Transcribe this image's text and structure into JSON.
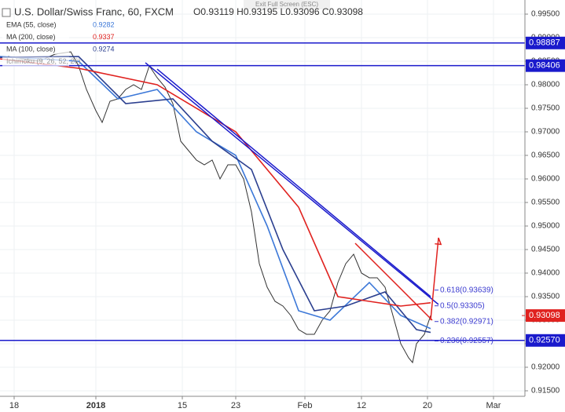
{
  "chart_data": {
    "type": "line",
    "title": "U.S. Dollar/Swiss Franc, 60, FXCM",
    "ohlc": "O0.93119 H0.93195 L0.93096 C0.93098",
    "exit_label": "Exit Full Screen (ESC)",
    "indicators": [
      {
        "label": "EMA (55, close)",
        "value_label": "0.9282",
        "color": "#3c78d8"
      },
      {
        "label": "MA (200, close)",
        "value_label": "0.9337",
        "color": "#e0221f"
      },
      {
        "label": "MA (100, close)",
        "value_label": "0.9274",
        "color": "#2b3f8f"
      },
      {
        "label": "Ichimoku (9, 26, 52, 26)"
      }
    ],
    "xlim": [
      0,
      167
    ],
    "xticks": [
      {
        "value": 4.5,
        "label": "18"
      },
      {
        "value": 30.5,
        "label": "2018"
      },
      {
        "value": 58,
        "label": "15"
      },
      {
        "value": 75,
        "label": "23"
      },
      {
        "value": 97,
        "label": "Feb"
      },
      {
        "value": 115,
        "label": "12"
      },
      {
        "value": 136,
        "label": "20"
      },
      {
        "value": 157,
        "label": "Mar"
      }
    ],
    "ylim": [
      0.91383,
      0.998
    ],
    "yticks": [
      {
        "value": 0.915,
        "label": "0.91500"
      },
      {
        "value": 0.92,
        "label": "0.92000"
      },
      {
        "value": 0.925,
        "label": "0.92500"
      },
      {
        "value": 0.93,
        "label": "0.93000"
      },
      {
        "value": 0.935,
        "label": "0.93500"
      },
      {
        "value": 0.94,
        "label": "0.94000"
      },
      {
        "value": 0.945,
        "label": "0.94500"
      },
      {
        "value": 0.95,
        "label": "0.95000"
      },
      {
        "value": 0.955,
        "label": "0.95500"
      },
      {
        "value": 0.96,
        "label": "0.96000"
      },
      {
        "value": 0.965,
        "label": "0.96500"
      },
      {
        "value": 0.97,
        "label": "0.97000"
      },
      {
        "value": 0.975,
        "label": "0.97500"
      },
      {
        "value": 0.98,
        "label": "0.98000"
      },
      {
        "value": 0.985,
        "label": "0.98500"
      },
      {
        "value": 0.99,
        "label": "0.99000"
      },
      {
        "value": 0.995,
        "label": "0.99500"
      }
    ],
    "grid": true,
    "series": [
      {
        "name": "Price",
        "color": "#333333",
        "x": [
          2.5,
          7.5,
          12.5,
          17.5,
          22.5,
          25,
          27.5,
          30.5,
          32.5,
          35,
          37.5,
          40,
          42.5,
          45,
          47.5,
          50,
          52.5,
          55,
          57.5,
          60,
          62.5,
          65,
          67.5,
          70,
          72.5,
          75,
          77.5,
          80,
          82.5,
          85,
          87.5,
          90,
          92.5,
          95,
          97.5,
          100,
          102.5,
          105,
          107.5,
          110,
          112.5,
          115,
          117.5,
          120,
          122.5,
          125,
          127.5,
          130,
          131.25,
          132.5,
          135,
          137
        ],
        "values": [
          0.986,
          0.9855,
          0.985,
          0.9865,
          0.987,
          0.984,
          0.979,
          0.9745,
          0.972,
          0.9765,
          0.977,
          0.979,
          0.98,
          0.979,
          0.984,
          0.9815,
          0.9795,
          0.976,
          0.968,
          0.966,
          0.964,
          0.963,
          0.964,
          0.96,
          0.963,
          0.963,
          0.96,
          0.953,
          0.942,
          0.937,
          0.934,
          0.933,
          0.931,
          0.928,
          0.927,
          0.927,
          0.93,
          0.932,
          0.938,
          0.942,
          0.944,
          0.94,
          0.939,
          0.939,
          0.937,
          0.931,
          0.925,
          0.922,
          0.921,
          0.925,
          0.927,
          0.931
        ]
      },
      {
        "name": "EMA 55",
        "color": "#3c78d8",
        "x": [
          0,
          25,
          37.5,
          50,
          62.5,
          75,
          85,
          95,
          105,
          117.5,
          127.5,
          137
        ],
        "values": [
          0.986,
          0.985,
          0.977,
          0.979,
          0.97,
          0.965,
          0.95,
          0.932,
          0.93,
          0.938,
          0.931,
          0.9282
        ]
      },
      {
        "name": "MA 100",
        "color": "#2b3f8f",
        "x": [
          0,
          25,
          40,
          55,
          67.5,
          80,
          90,
          100,
          110,
          122.5,
          132.5,
          137
        ],
        "values": [
          0.9858,
          0.986,
          0.976,
          0.977,
          0.968,
          0.962,
          0.945,
          0.932,
          0.933,
          0.936,
          0.928,
          0.9274
        ]
      },
      {
        "name": "MA 200",
        "color": "#e0221f",
        "x": [
          0,
          25,
          50,
          75,
          95,
          107.5,
          117.5,
          127.5,
          137
        ],
        "values": [
          0.9855,
          0.9835,
          0.98,
          0.97,
          0.954,
          0.935,
          0.934,
          0.933,
          0.9337
        ]
      }
    ],
    "levels": [
      {
        "value": 0.98887,
        "label": "0.98887",
        "color": "#1a1acc"
      },
      {
        "value": 0.98406,
        "label": "0.98406",
        "color": "#1a1acc"
      },
      {
        "value": 0.9257,
        "label": "0.92570",
        "color": "#1a1acc"
      }
    ],
    "last_price": {
      "value": 0.93098,
      "label": "0.93098",
      "color": "#e0221f"
    },
    "fib": [
      {
        "value": 0.93639,
        "label": "0.618(0.93639)"
      },
      {
        "value": 0.93305,
        "label": "0.5(0.93305)"
      },
      {
        "value": 0.92971,
        "label": "0.382(0.92971)"
      },
      {
        "value": 0.92557,
        "label": "0.236(0.92557)"
      }
    ],
    "trendlines": [
      {
        "x": [
          46.25,
          139.5
        ],
        "y": [
          0.98467,
          0.93333
        ],
        "color": "#1a1acc"
      },
      {
        "x": [
          50,
          137
        ],
        "y": [
          0.98333,
          0.935
        ],
        "color": "#1a1acc"
      },
      {
        "x": [
          113,
          137.5
        ],
        "y": [
          0.94633,
          0.93
        ],
        "color": "#e0221f"
      }
    ],
    "arrow": {
      "x": [
        137,
        139.5
      ],
      "y": [
        0.93,
        0.9475
      ],
      "color": "#e0221f"
    }
  }
}
